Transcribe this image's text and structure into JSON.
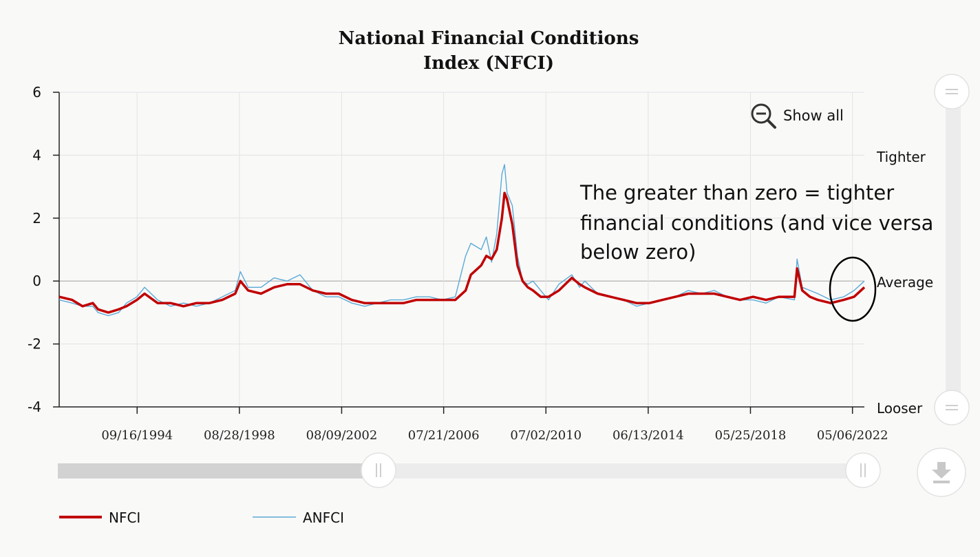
{
  "chart_data": {
    "type": "line",
    "title_lines": [
      "National Financial Conditions",
      "Index (NFCI)"
    ],
    "x_tick_labels": [
      "09/16/1994",
      "08/28/1998",
      "08/09/2002",
      "07/21/2006",
      "07/02/2010",
      "06/13/2014",
      "05/25/2018",
      "05/06/2022"
    ],
    "y_tick_labels": [
      "6",
      "4",
      "2",
      "0",
      "-2",
      "-4"
    ],
    "ylim": [
      -4,
      6
    ],
    "xlim": [
      1991.7,
      2022.8
    ],
    "grid": true,
    "right_labels": {
      "tighter": "Tighter",
      "average": "Average",
      "looser": "Looser"
    },
    "annotation_lines": [
      "The greater than zero = tighter",
      "financial conditions (and vice versa",
      "below zero)"
    ],
    "show_all_label": "Show all",
    "legend_position": "bottom-left",
    "colors": {
      "nfci": "#c00000",
      "anfci": "#5aa9d6"
    },
    "series": [
      {
        "name": "NFCI",
        "x": [
          1991.7,
          1992.2,
          1992.6,
          1993.0,
          1993.2,
          1993.6,
          1994.0,
          1994.3,
          1994.7,
          1995.0,
          1995.5,
          1996.0,
          1996.5,
          1997.0,
          1997.5,
          1998.0,
          1998.5,
          1998.7,
          1999.0,
          1999.5,
          2000.0,
          2000.5,
          2001.0,
          2001.5,
          2002.0,
          2002.5,
          2003.0,
          2003.5,
          2004.0,
          2004.5,
          2005.0,
          2005.5,
          2006.0,
          2006.5,
          2007.0,
          2007.4,
          2007.6,
          2008.0,
          2008.2,
          2008.4,
          2008.6,
          2008.8,
          2008.9,
          2009.0,
          2009.2,
          2009.4,
          2009.6,
          2009.8,
          2010.0,
          2010.3,
          2010.6,
          2011.0,
          2011.5,
          2011.8,
          2012.0,
          2012.5,
          2013.0,
          2013.5,
          2014.0,
          2014.5,
          2015.0,
          2015.5,
          2016.0,
          2016.5,
          2017.0,
          2017.5,
          2018.0,
          2018.5,
          2019.0,
          2019.5,
          2020.1,
          2020.2,
          2020.4,
          2020.7,
          2021.0,
          2021.5,
          2022.0,
          2022.4,
          2022.8
        ],
        "values": [
          -0.5,
          -0.6,
          -0.8,
          -0.7,
          -0.9,
          -1.0,
          -0.9,
          -0.8,
          -0.6,
          -0.4,
          -0.7,
          -0.7,
          -0.8,
          -0.7,
          -0.7,
          -0.6,
          -0.4,
          0.0,
          -0.3,
          -0.4,
          -0.2,
          -0.1,
          -0.1,
          -0.3,
          -0.4,
          -0.4,
          -0.6,
          -0.7,
          -0.7,
          -0.7,
          -0.7,
          -0.6,
          -0.6,
          -0.6,
          -0.6,
          -0.3,
          0.2,
          0.5,
          0.8,
          0.7,
          1.0,
          2.0,
          2.8,
          2.6,
          1.8,
          0.5,
          0.0,
          -0.2,
          -0.3,
          -0.5,
          -0.5,
          -0.3,
          0.1,
          -0.1,
          -0.2,
          -0.4,
          -0.5,
          -0.6,
          -0.7,
          -0.7,
          -0.6,
          -0.5,
          -0.4,
          -0.4,
          -0.4,
          -0.5,
          -0.6,
          -0.5,
          -0.6,
          -0.5,
          -0.5,
          0.4,
          -0.3,
          -0.5,
          -0.6,
          -0.7,
          -0.6,
          -0.5,
          -0.2
        ]
      },
      {
        "name": "ANFCI",
        "x": [
          1991.7,
          1992.2,
          1992.6,
          1993.0,
          1993.2,
          1993.6,
          1994.0,
          1994.3,
          1994.7,
          1995.0,
          1995.5,
          1996.0,
          1996.5,
          1997.0,
          1997.5,
          1998.0,
          1998.5,
          1998.7,
          1999.0,
          1999.5,
          2000.0,
          2000.5,
          2001.0,
          2001.5,
          2002.0,
          2002.5,
          2003.0,
          2003.5,
          2004.0,
          2004.5,
          2005.0,
          2005.5,
          2006.0,
          2006.5,
          2007.0,
          2007.4,
          2007.6,
          2008.0,
          2008.2,
          2008.4,
          2008.6,
          2008.8,
          2008.9,
          2009.0,
          2009.2,
          2009.4,
          2009.6,
          2009.8,
          2010.0,
          2010.3,
          2010.6,
          2011.0,
          2011.5,
          2011.8,
          2012.0,
          2012.5,
          2013.0,
          2013.5,
          2014.0,
          2014.5,
          2015.0,
          2015.5,
          2016.0,
          2016.5,
          2017.0,
          2017.5,
          2018.0,
          2018.5,
          2019.0,
          2019.5,
          2020.1,
          2020.2,
          2020.4,
          2020.7,
          2021.0,
          2021.5,
          2022.0,
          2022.4,
          2022.8
        ],
        "values": [
          -0.6,
          -0.7,
          -0.8,
          -0.8,
          -1.0,
          -1.1,
          -1.0,
          -0.7,
          -0.5,
          -0.2,
          -0.6,
          -0.8,
          -0.7,
          -0.8,
          -0.7,
          -0.5,
          -0.3,
          0.3,
          -0.2,
          -0.2,
          0.1,
          0.0,
          0.2,
          -0.3,
          -0.5,
          -0.5,
          -0.7,
          -0.8,
          -0.7,
          -0.6,
          -0.6,
          -0.5,
          -0.5,
          -0.6,
          -0.5,
          0.8,
          1.2,
          1.0,
          1.4,
          0.6,
          1.5,
          3.4,
          3.7,
          2.8,
          2.4,
          0.8,
          0.0,
          -0.1,
          0.0,
          -0.3,
          -0.6,
          -0.1,
          0.2,
          -0.2,
          0.0,
          -0.4,
          -0.5,
          -0.6,
          -0.8,
          -0.7,
          -0.6,
          -0.5,
          -0.3,
          -0.4,
          -0.3,
          -0.5,
          -0.6,
          -0.6,
          -0.7,
          -0.5,
          -0.6,
          0.7,
          -0.2,
          -0.3,
          -0.4,
          -0.6,
          -0.5,
          -0.3,
          0.0
        ]
      }
    ]
  }
}
